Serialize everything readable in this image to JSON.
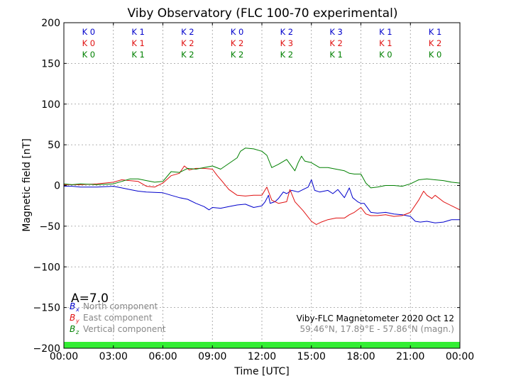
{
  "chart_data": {
    "type": "line",
    "title": "Viby Observatory (FLC 100-70 experimental)",
    "xlabel": "Time [UTC]",
    "ylabel": "Magnetic field [nT]",
    "xlim": [
      0,
      24
    ],
    "ylim": [
      -200,
      200
    ],
    "grid": true,
    "xticks": [
      {
        "v": 0,
        "label": "00:00"
      },
      {
        "v": 3,
        "label": "03:00"
      },
      {
        "v": 6,
        "label": "06:00"
      },
      {
        "v": 9,
        "label": "09:00"
      },
      {
        "v": 12,
        "label": "12:00"
      },
      {
        "v": 15,
        "label": "15:00"
      },
      {
        "v": 18,
        "label": "18:00"
      },
      {
        "v": 21,
        "label": "21:00"
      },
      {
        "v": 24,
        "label": "00:00"
      }
    ],
    "yticks": [
      {
        "v": 200,
        "label": "200"
      },
      {
        "v": 150,
        "label": "150"
      },
      {
        "v": 100,
        "label": "100"
      },
      {
        "v": 50,
        "label": "50"
      },
      {
        "v": 0,
        "label": "0"
      },
      {
        "v": -50,
        "label": "−50"
      },
      {
        "v": -100,
        "label": "−100"
      },
      {
        "v": -150,
        "label": "−150"
      },
      {
        "v": -200,
        "label": "−200"
      }
    ],
    "k_index_rows": [
      {
        "color": "#0000cc",
        "labels": [
          "K 0",
          "K 1",
          "K 2",
          "K 0",
          "K 2",
          "K 3",
          "K 1",
          "K 1"
        ]
      },
      {
        "color": "#e01010",
        "labels": [
          "K 0",
          "K 1",
          "K 2",
          "K 2",
          "K 3",
          "K 2",
          "K 1",
          "K 2"
        ]
      },
      {
        "color": "#008000",
        "labels": [
          "K 0",
          "K 1",
          "K 2",
          "K 2",
          "K 2",
          "K 1",
          "K 0",
          "K 0"
        ]
      }
    ],
    "a_index": "A=7.0",
    "legend": [
      {
        "symbol": "B",
        "sub": "x",
        "label": "North component",
        "color": "#0000cc"
      },
      {
        "symbol": "B",
        "sub": "y",
        "label": "East component",
        "color": "#e01010"
      },
      {
        "symbol": "B",
        "sub": "z",
        "label": "Vertical component",
        "color": "#008000"
      }
    ],
    "info_line1": "Viby-FLC Magnetometer 2020 Oct 12",
    "info_line2": "59.46°N, 17.89°E - 57.86°N (magn.)",
    "activity_bar_color": "#33ee33",
    "series": [
      {
        "name": "North component",
        "color": "#0000cc",
        "points": [
          [
            0,
            -1
          ],
          [
            0.5,
            -1
          ],
          [
            1,
            -2
          ],
          [
            2,
            -2
          ],
          [
            3,
            -1
          ],
          [
            3.5,
            -3
          ],
          [
            4,
            -5
          ],
          [
            4.5,
            -7
          ],
          [
            5,
            -8
          ],
          [
            6,
            -9
          ],
          [
            6.5,
            -12
          ],
          [
            7,
            -15
          ],
          [
            7.5,
            -17
          ],
          [
            8,
            -22
          ],
          [
            8.5,
            -26
          ],
          [
            8.8,
            -30
          ],
          [
            9,
            -27
          ],
          [
            9.5,
            -28
          ],
          [
            10,
            -26
          ],
          [
            10.5,
            -24
          ],
          [
            11,
            -23
          ],
          [
            11.5,
            -27
          ],
          [
            12,
            -25
          ],
          [
            12.2,
            -20
          ],
          [
            12.4,
            -12
          ],
          [
            12.5,
            -22
          ],
          [
            12.8,
            -20
          ],
          [
            13,
            -16
          ],
          [
            13.3,
            -8
          ],
          [
            13.5,
            -10
          ],
          [
            13.8,
            -6
          ],
          [
            14.2,
            -8
          ],
          [
            14.5,
            -5
          ],
          [
            14.8,
            -2
          ],
          [
            15,
            7
          ],
          [
            15.2,
            -6
          ],
          [
            15.5,
            -8
          ],
          [
            16,
            -6
          ],
          [
            16.3,
            -10
          ],
          [
            16.6,
            -5
          ],
          [
            17,
            -15
          ],
          [
            17.3,
            -3
          ],
          [
            17.5,
            -15
          ],
          [
            17.8,
            -20
          ],
          [
            18,
            -22
          ],
          [
            18.2,
            -22
          ],
          [
            18.6,
            -33
          ],
          [
            19,
            -34
          ],
          [
            19.5,
            -33
          ],
          [
            20,
            -35
          ],
          [
            20.5,
            -36
          ],
          [
            21,
            -38
          ],
          [
            21.3,
            -44
          ],
          [
            21.6,
            -45
          ],
          [
            22,
            -44
          ],
          [
            22.5,
            -46
          ],
          [
            23,
            -45
          ],
          [
            23.5,
            -42
          ],
          [
            24,
            -42
          ]
        ]
      },
      {
        "name": "East component",
        "color": "#e01010",
        "points": [
          [
            0,
            1
          ],
          [
            1,
            1
          ],
          [
            2,
            2
          ],
          [
            3,
            4
          ],
          [
            3.5,
            7
          ],
          [
            4,
            6
          ],
          [
            4.5,
            5
          ],
          [
            5,
            -1
          ],
          [
            5.5,
            -2
          ],
          [
            6,
            3
          ],
          [
            6.5,
            12
          ],
          [
            7,
            15
          ],
          [
            7.3,
            24
          ],
          [
            7.6,
            19
          ],
          [
            8,
            21
          ],
          [
            8.5,
            21
          ],
          [
            9,
            20
          ],
          [
            9.3,
            12
          ],
          [
            9.6,
            5
          ],
          [
            10,
            -5
          ],
          [
            10.5,
            -12
          ],
          [
            11,
            -13
          ],
          [
            11.5,
            -12
          ],
          [
            12,
            -12
          ],
          [
            12.3,
            -2
          ],
          [
            12.6,
            -18
          ],
          [
            13,
            -22
          ],
          [
            13.5,
            -20
          ],
          [
            13.7,
            -5
          ],
          [
            14,
            -20
          ],
          [
            14.5,
            -31
          ],
          [
            15,
            -44
          ],
          [
            15.3,
            -48
          ],
          [
            15.6,
            -45
          ],
          [
            16,
            -42
          ],
          [
            16.5,
            -40
          ],
          [
            17,
            -40
          ],
          [
            17.3,
            -36
          ],
          [
            17.6,
            -33
          ],
          [
            18,
            -27
          ],
          [
            18.3,
            -35
          ],
          [
            18.6,
            -37
          ],
          [
            19,
            -37
          ],
          [
            19.5,
            -36
          ],
          [
            20,
            -38
          ],
          [
            20.5,
            -37
          ],
          [
            21,
            -33
          ],
          [
            21.5,
            -18
          ],
          [
            21.8,
            -7
          ],
          [
            22,
            -12
          ],
          [
            22.3,
            -16
          ],
          [
            22.5,
            -12
          ],
          [
            23,
            -20
          ],
          [
            23.5,
            -25
          ],
          [
            24,
            -30
          ]
        ]
      },
      {
        "name": "Vertical component",
        "color": "#008000",
        "points": [
          [
            0,
            2
          ],
          [
            0.5,
            1
          ],
          [
            1,
            2
          ],
          [
            2,
            1
          ],
          [
            3,
            2
          ],
          [
            3.5,
            5
          ],
          [
            4,
            8
          ],
          [
            4.5,
            8
          ],
          [
            5,
            6
          ],
          [
            5.5,
            4
          ],
          [
            6,
            5
          ],
          [
            6.5,
            17
          ],
          [
            7,
            16
          ],
          [
            7.5,
            21
          ],
          [
            8,
            20
          ],
          [
            8.5,
            22
          ],
          [
            9,
            24
          ],
          [
            9.5,
            20
          ],
          [
            10,
            27
          ],
          [
            10.5,
            34
          ],
          [
            10.7,
            42
          ],
          [
            11,
            46
          ],
          [
            11.5,
            45
          ],
          [
            12,
            42
          ],
          [
            12.3,
            37
          ],
          [
            12.6,
            22
          ],
          [
            13,
            26
          ],
          [
            13.5,
            32
          ],
          [
            14,
            18
          ],
          [
            14.2,
            28
          ],
          [
            14.4,
            36
          ],
          [
            14.6,
            30
          ],
          [
            15,
            28
          ],
          [
            15.5,
            22
          ],
          [
            16,
            22
          ],
          [
            16.5,
            20
          ],
          [
            17,
            18
          ],
          [
            17.3,
            15
          ],
          [
            17.6,
            14
          ],
          [
            18,
            14
          ],
          [
            18.3,
            3
          ],
          [
            18.6,
            -3
          ],
          [
            19,
            -2
          ],
          [
            19.5,
            0
          ],
          [
            20,
            0
          ],
          [
            20.5,
            -1
          ],
          [
            21,
            2
          ],
          [
            21.5,
            7
          ],
          [
            22,
            8
          ],
          [
            22.5,
            7
          ],
          [
            23,
            6
          ],
          [
            23.5,
            4
          ],
          [
            24,
            3
          ]
        ]
      }
    ]
  }
}
